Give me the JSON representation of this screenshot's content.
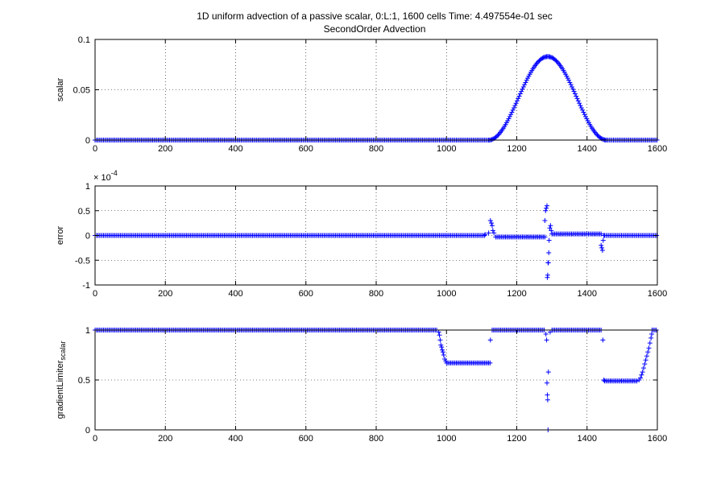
{
  "figure": {
    "title_line1": "1D uniform advection of a passive scalar, 0:L:1, 1600 cells Time: 4.497554e-01 sec",
    "title_line2": "SecondOrder Advection",
    "marker_color": "#0000ff"
  },
  "chart_data": [
    {
      "type": "scatter",
      "marker": "+",
      "ylabel": "scalar",
      "xlim": [
        0,
        1600
      ],
      "ylim": [
        0,
        0.1
      ],
      "grid": true,
      "xticks": [
        "0",
        "200",
        "400",
        "600",
        "800",
        "1000",
        "1200",
        "1400",
        "1600"
      ],
      "yticks": [
        "0",
        "0.05",
        "0.1"
      ],
      "ytick_values": [
        0,
        0.05,
        0.1
      ],
      "pulse": {
        "start": 1120,
        "end": 1455,
        "peak_x": 1288,
        "peak_y": 0.083
      }
    },
    {
      "type": "scatter",
      "marker": "+",
      "ylabel": "error",
      "exponent_label": "× 10",
      "exponent_power": "-4",
      "xlim": [
        0,
        1600
      ],
      "ylim": [
        -1,
        1
      ],
      "grid": true,
      "xticks": [
        "0",
        "200",
        "400",
        "600",
        "800",
        "1000",
        "1200",
        "1400",
        "1600"
      ],
      "yticks": [
        "-1",
        "-0.5",
        "0",
        "0.5",
        "1"
      ],
      "ytick_values": [
        -1,
        -0.5,
        0,
        0.5,
        1
      ],
      "segments": [
        [
          0,
          1110,
          0
        ],
        [
          1140,
          1280,
          -0.03
        ],
        [
          1300,
          1440,
          0.03
        ],
        [
          1450,
          1600,
          0
        ]
      ],
      "points": [
        [
          1110,
          0.02
        ],
        [
          1120,
          0.05
        ],
        [
          1125,
          0.3
        ],
        [
          1128,
          0.25
        ],
        [
          1130,
          0.2
        ],
        [
          1132,
          0.1
        ],
        [
          1135,
          0.05
        ],
        [
          1280,
          0.3
        ],
        [
          1282,
          0.5
        ],
        [
          1284,
          0.55
        ],
        [
          1286,
          0.6
        ],
        [
          1287,
          -0.85
        ],
        [
          1288,
          -0.8
        ],
        [
          1289,
          -0.55
        ],
        [
          1290,
          -0.55
        ],
        [
          1291,
          -0.35
        ],
        [
          1292,
          -0.1
        ],
        [
          1294,
          0.15
        ],
        [
          1296,
          0.2
        ],
        [
          1298,
          0.1
        ],
        [
          1440,
          -0.2
        ],
        [
          1442,
          -0.25
        ],
        [
          1444,
          -0.3
        ],
        [
          1446,
          -0.1
        ],
        [
          1448,
          0.0
        ]
      ]
    },
    {
      "type": "scatter",
      "marker": "+",
      "ylabel": "gradientLimiter",
      "ylabel_subscript": "scalar",
      "xlim": [
        0,
        1600
      ],
      "ylim": [
        0,
        1
      ],
      "grid": true,
      "xticks": [
        "0",
        "200",
        "400",
        "600",
        "800",
        "1000",
        "1200",
        "1400",
        "1600"
      ],
      "yticks": [
        "0",
        "0.5",
        "1"
      ],
      "ytick_values": [
        0,
        0.5,
        1
      ],
      "segments": [
        [
          0,
          975,
          1
        ],
        [
          1000,
          1125,
          0.67
        ],
        [
          1130,
          1280,
          1
        ],
        [
          1300,
          1440,
          1
        ],
        [
          1450,
          1545,
          0.49
        ],
        [
          1585,
          1600,
          1
        ]
      ],
      "points": [
        [
          978,
          0.98
        ],
        [
          980,
          0.95
        ],
        [
          982,
          0.9
        ],
        [
          984,
          0.85
        ],
        [
          986,
          0.83
        ],
        [
          988,
          0.8
        ],
        [
          990,
          0.78
        ],
        [
          992,
          0.75
        ],
        [
          995,
          0.71
        ],
        [
          998,
          0.69
        ],
        [
          1125,
          0.9
        ],
        [
          1283,
          0.96
        ],
        [
          1285,
          0.9
        ],
        [
          1286,
          0.47
        ],
        [
          1287,
          0.35
        ],
        [
          1288,
          0.3
        ],
        [
          1289,
          0.0
        ],
        [
          1290,
          0.58
        ],
        [
          1295,
          0.98
        ],
        [
          1445,
          0.9
        ],
        [
          1448,
          0.5
        ],
        [
          1548,
          0.5
        ],
        [
          1552,
          0.52
        ],
        [
          1555,
          0.55
        ],
        [
          1558,
          0.58
        ],
        [
          1561,
          0.62
        ],
        [
          1564,
          0.66
        ],
        [
          1567,
          0.7
        ],
        [
          1570,
          0.74
        ],
        [
          1573,
          0.78
        ],
        [
          1576,
          0.82
        ],
        [
          1579,
          0.87
        ],
        [
          1582,
          0.92
        ],
        [
          1584,
          0.96
        ]
      ]
    }
  ]
}
